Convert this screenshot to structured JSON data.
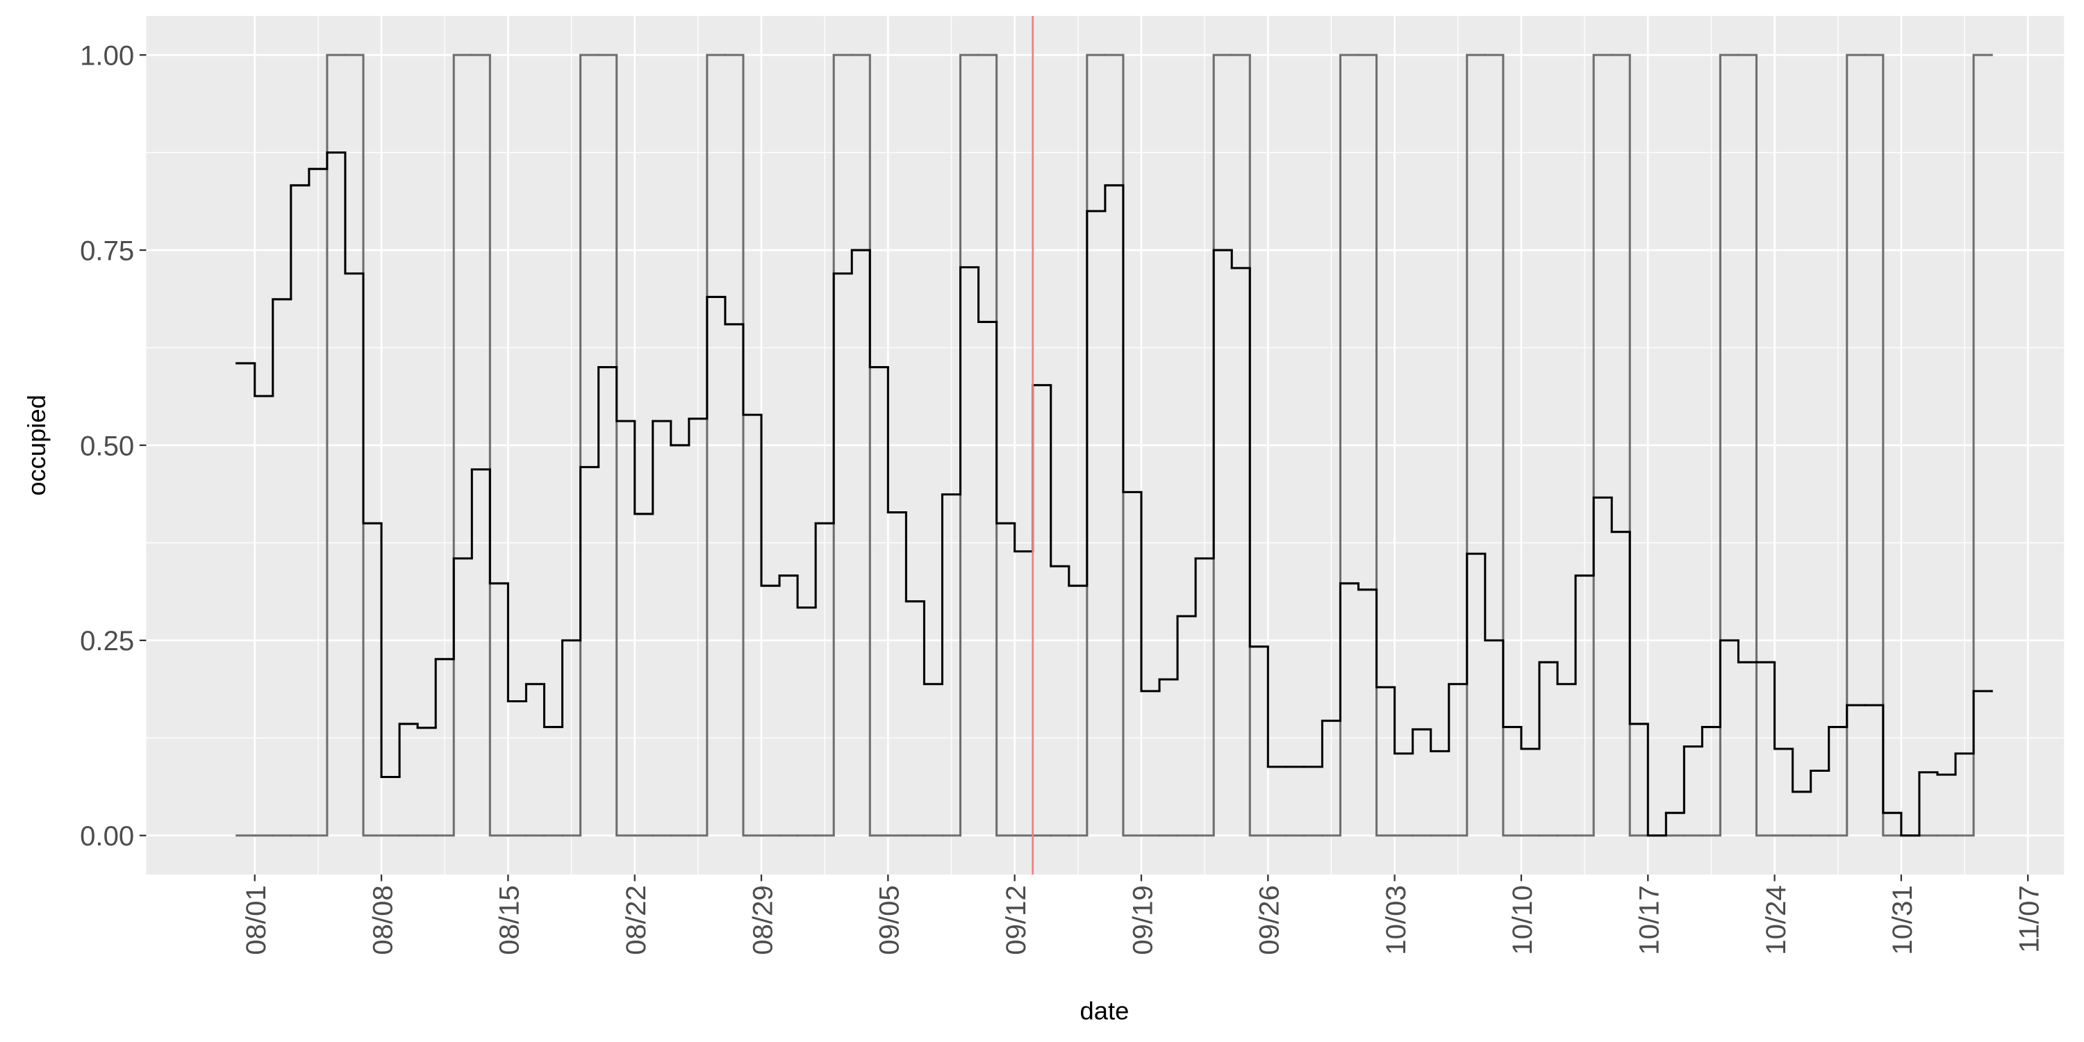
{
  "chart_data": {
    "type": "step",
    "x_label": "date",
    "y_label": "occupied",
    "x": [
      "07/31",
      "08/01",
      "08/02",
      "08/03",
      "08/04",
      "08/05",
      "08/06",
      "08/07",
      "08/08",
      "08/09",
      "08/10",
      "08/11",
      "08/12",
      "08/13",
      "08/14",
      "08/15",
      "08/16",
      "08/17",
      "08/18",
      "08/19",
      "08/20",
      "08/21",
      "08/22",
      "08/23",
      "08/24",
      "08/25",
      "08/26",
      "08/27",
      "08/28",
      "08/29",
      "08/30",
      "08/31",
      "09/01",
      "09/02",
      "09/03",
      "09/04",
      "09/05",
      "09/06",
      "09/07",
      "09/08",
      "09/09",
      "09/10",
      "09/11",
      "09/12",
      "09/13",
      "09/14",
      "09/15",
      "09/16",
      "09/17",
      "09/18",
      "09/19",
      "09/20",
      "09/21",
      "09/22",
      "09/23",
      "09/24",
      "09/25",
      "09/26",
      "09/27",
      "09/28",
      "09/29",
      "09/30",
      "10/01",
      "10/02",
      "10/03",
      "10/04",
      "10/05",
      "10/06",
      "10/07",
      "10/08",
      "10/09",
      "10/10",
      "10/11",
      "10/12",
      "10/13",
      "10/14",
      "10/15",
      "10/16",
      "10/17",
      "10/18",
      "10/19",
      "10/20",
      "10/21",
      "10/22",
      "10/23",
      "10/24",
      "10/25",
      "10/26",
      "10/27",
      "10/28",
      "10/29",
      "10/30",
      "10/31",
      "11/01",
      "11/02",
      "11/03",
      "11/04",
      "11/05"
    ],
    "series": [
      {
        "color": "#6e6e6e",
        "values": [
          0,
          0,
          0,
          0,
          0,
          1,
          1,
          0,
          0,
          0,
          0,
          0,
          1,
          1,
          0,
          0,
          0,
          0,
          0,
          1,
          1,
          0,
          0,
          0,
          0,
          0,
          1,
          1,
          0,
          0,
          0,
          0,
          0,
          1,
          1,
          0,
          0,
          0,
          0,
          0,
          1,
          1,
          0,
          0,
          0,
          0,
          0,
          1,
          1,
          0,
          0,
          0,
          0,
          0,
          1,
          1,
          0,
          0,
          0,
          0,
          0,
          1,
          1,
          0,
          0,
          0,
          0,
          0,
          1,
          1,
          0,
          0,
          0,
          0,
          0,
          1,
          1,
          0,
          0,
          0,
          0,
          0,
          1,
          1,
          0,
          0,
          0,
          0,
          0,
          1,
          1,
          0,
          0,
          0,
          0,
          0,
          1,
          1
        ]
      },
      {
        "color": "#000000",
        "values": [
          0.605,
          0.563,
          0.687,
          0.833,
          0.854,
          0.875,
          0.72,
          0.4,
          0.075,
          0.143,
          0.138,
          0.226,
          0.355,
          0.469,
          0.323,
          0.172,
          0.194,
          0.139,
          0.25,
          0.472,
          0.6,
          0.531,
          0.412,
          0.531,
          0.5,
          0.534,
          0.69,
          0.655,
          0.539,
          0.32,
          0.333,
          0.292,
          0.4,
          0.72,
          0.75,
          0.6,
          0.414,
          0.3,
          0.194,
          0.437,
          0.728,
          0.658,
          0.4,
          0.364,
          0.577,
          0.345,
          0.32,
          0.8,
          0.833,
          0.44,
          0.185,
          0.2,
          0.281,
          0.355,
          0.75,
          0.727,
          0.242,
          0.088,
          0.088,
          0.088,
          0.147,
          0.323,
          0.315,
          0.19,
          0.105,
          0.136,
          0.108,
          0.194,
          0.361,
          0.25,
          0.139,
          0.111,
          0.222,
          0.194,
          0.333,
          0.433,
          0.389,
          0.143,
          0,
          0.029,
          0.114,
          0.139,
          0.25,
          0.222,
          0.222,
          0.111,
          0.056,
          0.083,
          0.139,
          0.167,
          0.167,
          0.029,
          0,
          0.081,
          0.078,
          0.105,
          0.185,
          0.185
        ]
      }
    ],
    "vline": {
      "x": "09/13",
      "color": "#f08080"
    },
    "xlim": [
      "07/26",
      "11/09"
    ],
    "xticks": [
      "08/01",
      "08/08",
      "08/15",
      "08/22",
      "08/29",
      "09/05",
      "09/12",
      "09/19",
      "09/26",
      "10/03",
      "10/10",
      "10/17",
      "10/24",
      "10/31",
      "11/07"
    ],
    "ylim": [
      -0.05,
      1.05
    ],
    "yticks": [
      {
        "value": 0,
        "label": "0.00"
      },
      {
        "value": 0.25,
        "label": "0.25"
      },
      {
        "value": 0.5,
        "label": "0.50"
      },
      {
        "value": 0.75,
        "label": "0.75"
      },
      {
        "value": 1,
        "label": "1.00"
      }
    ],
    "grid": true
  }
}
